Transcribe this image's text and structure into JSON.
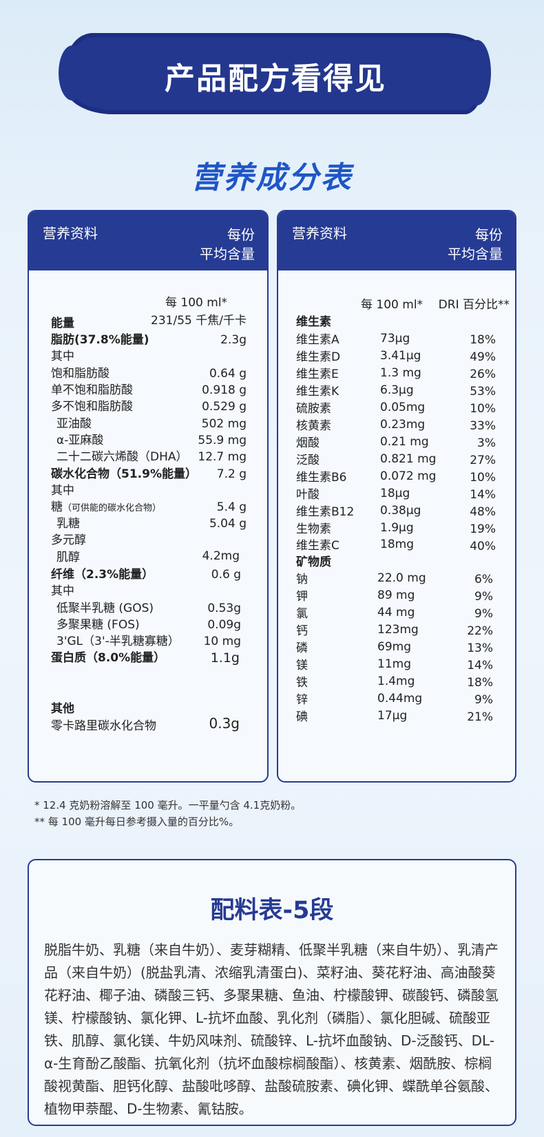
{
  "banner": {
    "title": "产品配方看得见"
  },
  "subtitle": "营养成分表",
  "left_panel": {
    "header": {
      "left": "营养资料",
      "right1": "每份",
      "right2": "平均含量"
    },
    "per": "每 100 ml*",
    "rows": [
      {
        "name": "能量",
        "value": "231/55 千焦/千卡"
      },
      {
        "name": "脂肪(37.8%能量)",
        "value": "2.3g"
      },
      {
        "name": "其中",
        "value": ""
      },
      {
        "name": "饱和脂肪酸",
        "value": "0.64 g"
      },
      {
        "name": "单不饱和脂肪酸",
        "value": "0.918 g"
      },
      {
        "name": "多不饱和脂肪酸",
        "value": "0.529 g"
      },
      {
        "name": "亚油酸",
        "value": "502 mg"
      },
      {
        "name": "α-亚麻酸",
        "value": "55.9 mg"
      },
      {
        "name": "二十二碳六烯酸（DHA）",
        "value": "12.7 mg"
      },
      {
        "name": "碳水化合物（51.9%能量）",
        "value": "7.2 g"
      },
      {
        "name": "其中",
        "value": ""
      },
      {
        "name": "糖",
        "value": "5.4 g",
        "note": "（可供能的碳水化合物）"
      },
      {
        "name": "乳糖",
        "value": "5.04 g"
      },
      {
        "name": "多元醇",
        "value": ""
      },
      {
        "name": "肌醇",
        "value": "4.2mg"
      },
      {
        "name": "纤维（2.3%能量）",
        "value": "0.6 g"
      },
      {
        "name": "其中",
        "value": ""
      },
      {
        "name": "低聚半乳糖 (GOS)",
        "value": "0.53g"
      },
      {
        "name": "多聚果糖 (FOS)",
        "value": "0.09g"
      },
      {
        "name": "3'GL（3'-半乳糖寡糖）",
        "value": "10 mg"
      },
      {
        "name": "蛋白质（8.0%能量）",
        "value": "1.1g"
      },
      {
        "name": "其他",
        "value": ""
      },
      {
        "name": "零卡路里碳水化合物",
        "value": "0.3g"
      }
    ]
  },
  "right_panel": {
    "header": {
      "left": "营养资料",
      "right1": "每份",
      "right2": "平均含量"
    },
    "per": "每 100 ml*",
    "dri": "DRI 百分比**",
    "vitamin_heading": "维生素",
    "vitamins": [
      {
        "name": "维生素A",
        "value": "73μg",
        "dri": "18%"
      },
      {
        "name": "维生素D",
        "value": "3.41μg",
        "dri": "49%"
      },
      {
        "name": "维生素E",
        "value": "1.3 mg",
        "dri": "26%"
      },
      {
        "name": "维生素K",
        "value": "6.3μg",
        "dri": "53%"
      },
      {
        "name": "硫胺素",
        "value": "0.05mg",
        "dri": "10%"
      },
      {
        "name": "核黄素",
        "value": "0.23mg",
        "dri": "33%"
      },
      {
        "name": "烟酸",
        "value": "0.21 mg",
        "dri": "3%"
      },
      {
        "name": "泛酸",
        "value": "0.821 mg",
        "dri": "27%"
      },
      {
        "name": "维生素B6",
        "value": "0.072 mg",
        "dri": "10%"
      },
      {
        "name": "叶酸",
        "value": "18μg",
        "dri": "14%"
      },
      {
        "name": "维生素B12",
        "value": "0.38μg",
        "dri": "48%"
      },
      {
        "name": "生物素",
        "value": "1.9μg",
        "dri": "19%"
      },
      {
        "name": "维生素C",
        "value": "18mg",
        "dri": "40%"
      }
    ],
    "mineral_heading": "矿物质",
    "minerals": [
      {
        "name": "钠",
        "value": "22.0 mg",
        "dri": "6%"
      },
      {
        "name": "钾",
        "value": "89 mg",
        "dri": "9%"
      },
      {
        "name": "氯",
        "value": "44 mg",
        "dri": "9%"
      },
      {
        "name": "钙",
        "value": "123mg",
        "dri": "22%"
      },
      {
        "name": "磷",
        "value": "69mg",
        "dri": "13%"
      },
      {
        "name": "镁",
        "value": "11mg",
        "dri": "14%"
      },
      {
        "name": "铁",
        "value": "1.4mg",
        "dri": "18%"
      },
      {
        "name": "锌",
        "value": "0.44mg",
        "dri": "9%"
      },
      {
        "name": "碘",
        "value": "17μg",
        "dri": "21%"
      }
    ]
  },
  "footnotes": [
    "* 12.4 克奶粉溶解至 100 毫升。一平量勺含 4.1克奶粉。",
    "** 每 100 毫升每日参考摄入量的百分比%。"
  ],
  "ingredients": {
    "title": "配料表-5段",
    "text": "脱脂牛奶、乳糖（来自牛奶）、麦芽糊精、低聚半乳糖（来自牛奶）、乳清产品（来自牛奶）(脱盐乳清、浓缩乳清蛋白)、菜籽油、葵花籽油、高油酸葵花籽油、椰子油、磷酸三钙、多聚果糖、鱼油、柠檬酸钾、碳酸钙、磷酸氢镁、柠檬酸钠、氯化钾、L-抗坏血酸、乳化剂（磷脂）、氯化胆碱、硫酸亚铁、肌醇、氯化镁、牛奶风味剂、硫酸锌、L-抗坏血酸钠、D-泛酸钙、DL-α-生育酚乙酸酯、抗氧化剂（抗坏血酸棕榈酸酯）、核黄素、烟酰胺、棕榈酸视黄酯、胆钙化醇、盐酸吡哆醇、盐酸硫胺素、碘化钾、蝶酰单谷氨酸、植物甲萘醌、D-生物素、氰钴胺。"
  }
}
